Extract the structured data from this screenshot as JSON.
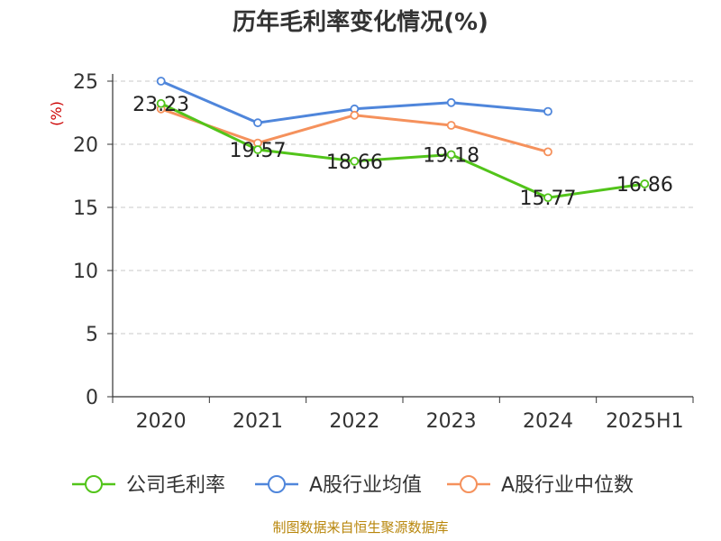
{
  "chart_data": {
    "type": "line",
    "title": "历年毛利率变化情况(%)",
    "ylabel": "(%)",
    "ylim": [
      0,
      25
    ],
    "yticks": [
      0,
      5,
      10,
      15,
      20,
      25
    ],
    "grid": "horizontal dashed",
    "legend_position": "bottom",
    "categories": [
      "2020",
      "2021",
      "2022",
      "2023",
      "2024",
      "2025H1"
    ],
    "series": [
      {
        "name": "公司毛利率",
        "color": "#52c41a",
        "show_labels": true,
        "values": [
          23.23,
          19.57,
          18.66,
          19.18,
          15.77,
          16.86
        ]
      },
      {
        "name": "A股行业均值",
        "color": "#4f86db",
        "show_labels": false,
        "values": [
          25.0,
          21.7,
          22.8,
          23.3,
          22.6,
          null
        ]
      },
      {
        "name": "A股行业中位数",
        "color": "#f5915c",
        "show_labels": false,
        "values": [
          22.8,
          20.1,
          22.3,
          21.5,
          19.4,
          null
        ]
      }
    ]
  },
  "source": "制图数据来自恒生聚源数据库"
}
